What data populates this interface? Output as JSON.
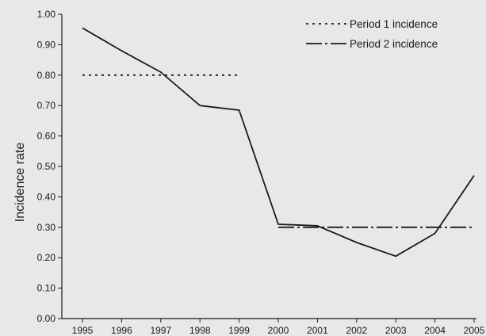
{
  "chart_data": {
    "type": "line",
    "title": "",
    "xlabel": "",
    "ylabel": "Incidence rate",
    "x": [
      "1995",
      "1996",
      "1997",
      "1998",
      "1999",
      "2000",
      "2001",
      "2002",
      "2003",
      "2004",
      "2005"
    ],
    "ylim": [
      0,
      1.0
    ],
    "yticks": [
      "0.00",
      "0.10",
      "0.20",
      "0.30",
      "0.40",
      "0.50",
      "0.60",
      "0.70",
      "0.80",
      "0.90",
      "1.00"
    ],
    "grid": false,
    "legend_position": "top-right",
    "series": [
      {
        "values": [
          0.955,
          0.88,
          0.81,
          0.7,
          0.685,
          0.31,
          0.305,
          0.25,
          0.205,
          0.28,
          0.47
        ],
        "style": "solid",
        "color": "#1a1a1a"
      },
      {
        "name": "Period 1 incidence",
        "style": "dotted",
        "color": "#1a1a1a",
        "x_range": [
          "1995",
          "1999"
        ],
        "value": 0.8
      },
      {
        "name": "Period 2 incidence",
        "style": "dash-dot",
        "color": "#1a1a1a",
        "x_range": [
          "2000",
          "2005"
        ],
        "value": 0.3
      }
    ]
  }
}
